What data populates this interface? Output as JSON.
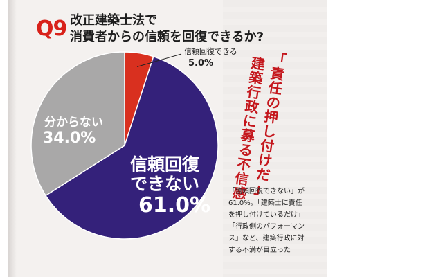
{
  "question": {
    "number": "Q9",
    "title_lines": [
      "改正建築士法で",
      "消費者からの信頼を回復できるか?"
    ]
  },
  "chart_data": {
    "type": "pie",
    "start_angle_deg": 0,
    "direction": "clockwise",
    "slices": [
      {
        "label": "信頼回復できる",
        "value": 5.0,
        "value_label": "5.0%",
        "color": "#d9301f"
      },
      {
        "label_lines": [
          "信頼回復",
          "できない"
        ],
        "value": 61.0,
        "value_label": "61.0%",
        "color": "#34217a"
      },
      {
        "label": "分からない",
        "value": 34.0,
        "value_label": "34.0%",
        "color": "#a9a8a8"
      }
    ]
  },
  "headline": {
    "col1": "「責任の押し付けだ」",
    "col2": "建築行政に募る不信感"
  },
  "caption_lines": [
    "「信頼回復できない」が",
    "61.0%。「建築士に責任",
    "を押し付けているだけ」",
    "「行政側のパフォーマン",
    "ス」など、建築行政に対",
    "する不満が目立った"
  ]
}
